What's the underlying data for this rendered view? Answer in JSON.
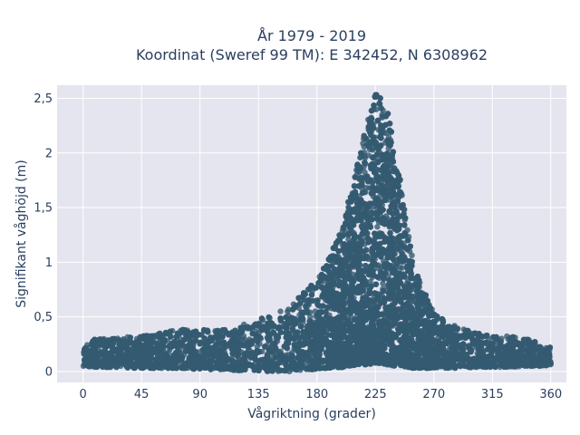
{
  "chart_data": {
    "type": "scatter",
    "title_line1": "År 1979 - 2019",
    "title_line2": "Koordinat (Sweref 99 TM): E 342452, N 6308962",
    "xlabel": "Vågriktning (grader)",
    "ylabel": "Signifikant våghöjd (m)",
    "xlim": [
      -20,
      372
    ],
    "ylim": [
      -0.1,
      2.62
    ],
    "grid": true,
    "marker_color": "#335a70",
    "plot_background": "#e5e5ef",
    "xticks": [
      {
        "value": 0,
        "label": "0"
      },
      {
        "value": 45,
        "label": "45"
      },
      {
        "value": 90,
        "label": "90"
      },
      {
        "value": 135,
        "label": "135"
      },
      {
        "value": 180,
        "label": "180"
      },
      {
        "value": 225,
        "label": "225"
      },
      {
        "value": 270,
        "label": "270"
      },
      {
        "value": 315,
        "label": "315"
      },
      {
        "value": 360,
        "label": "360"
      }
    ],
    "yticks": [
      {
        "value": 0,
        "label": "0"
      },
      {
        "value": 0.5,
        "label": "0,5"
      },
      {
        "value": 1,
        "label": "1"
      },
      {
        "value": 1.5,
        "label": "1,5"
      },
      {
        "value": 2,
        "label": "2"
      },
      {
        "value": 2.5,
        "label": "2,5"
      }
    ],
    "envelope": {
      "description_free": true,
      "direction": [
        0,
        10,
        20,
        30,
        40,
        50,
        60,
        70,
        80,
        90,
        100,
        110,
        120,
        130,
        140,
        150,
        160,
        170,
        180,
        190,
        200,
        205,
        210,
        215,
        220,
        225,
        230,
        235,
        240,
        245,
        250,
        255,
        260,
        270,
        280,
        290,
        300,
        310,
        320,
        330,
        340,
        350,
        360
      ],
      "max_height": [
        0.24,
        0.3,
        0.3,
        0.32,
        0.33,
        0.33,
        0.36,
        0.4,
        0.38,
        0.38,
        0.38,
        0.4,
        0.42,
        0.45,
        0.5,
        0.55,
        0.62,
        0.72,
        0.85,
        1.05,
        1.35,
        1.6,
        1.85,
        2.1,
        2.35,
        2.57,
        2.5,
        2.35,
        2.05,
        1.7,
        1.3,
        1.0,
        0.8,
        0.55,
        0.45,
        0.4,
        0.36,
        0.34,
        0.33,
        0.32,
        0.3,
        0.28,
        0.22
      ],
      "min_height": [
        0.05,
        0.04,
        0.04,
        0.04,
        0.03,
        0.03,
        0.03,
        0.03,
        0.03,
        0.02,
        0.02,
        0.02,
        0.01,
        0.01,
        0.0,
        0.0,
        0.0,
        0.01,
        0.02,
        0.03,
        0.04,
        0.05,
        0.06,
        0.06,
        0.07,
        0.07,
        0.07,
        0.06,
        0.05,
        0.04,
        0.04,
        0.03,
        0.03,
        0.03,
        0.03,
        0.03,
        0.04,
        0.04,
        0.04,
        0.04,
        0.05,
        0.05,
        0.06
      ]
    }
  }
}
